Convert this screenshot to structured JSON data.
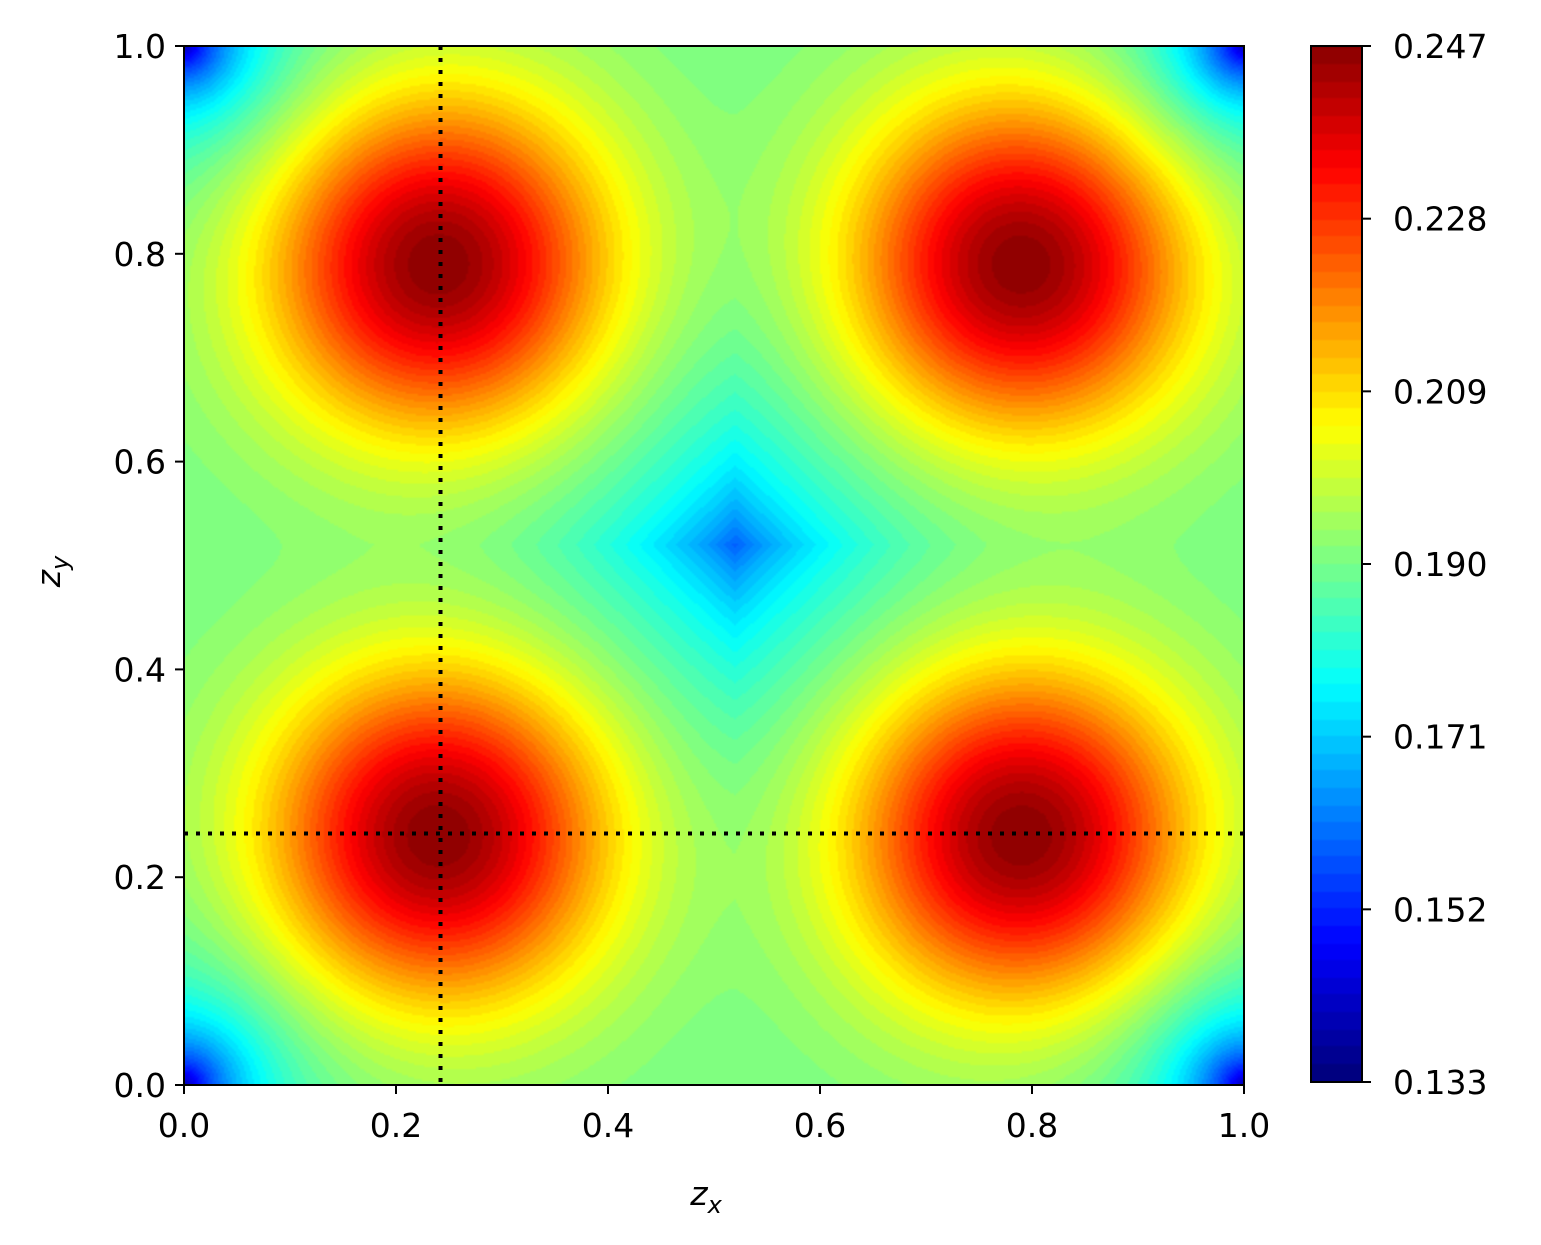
{
  "chart_data": {
    "type": "heatmap",
    "xlabel": "z",
    "xlabel_sub": "x",
    "ylabel": "z",
    "ylabel_sub": "y",
    "xlim": [
      0.0,
      1.0
    ],
    "ylim": [
      0.0,
      1.0
    ],
    "xticks": [
      "0.0",
      "0.2",
      "0.4",
      "0.6",
      "0.8",
      "1.0"
    ],
    "yticks": [
      "0.0",
      "0.2",
      "0.4",
      "0.6",
      "0.8",
      "1.0"
    ],
    "colormap": "jet",
    "colorbar": {
      "vmin": 0.133,
      "vmax": 0.247,
      "ticks": [
        "0.133",
        "0.152",
        "0.171",
        "0.190",
        "0.209",
        "0.228",
        "0.247"
      ]
    },
    "field": {
      "description_of_features": "four maxima near (0.24,0.24),(0.24,0.79),(0.79,0.24),(0.79,0.79); central minimum near (0.52,0.52); corner minima",
      "maxima": [
        [
          0.24,
          0.24
        ],
        [
          0.24,
          0.79
        ],
        [
          0.79,
          0.24
        ],
        [
          0.79,
          0.79
        ]
      ],
      "maximum_value": 0.247,
      "minimum_center": [
        0.52,
        0.52
      ],
      "minimum_value": 0.14,
      "corner_value": 0.15
    },
    "reference_lines": {
      "vertical_x": 0.242,
      "horizontal_y": 0.242,
      "style": "dotted",
      "color": "#000000"
    }
  }
}
